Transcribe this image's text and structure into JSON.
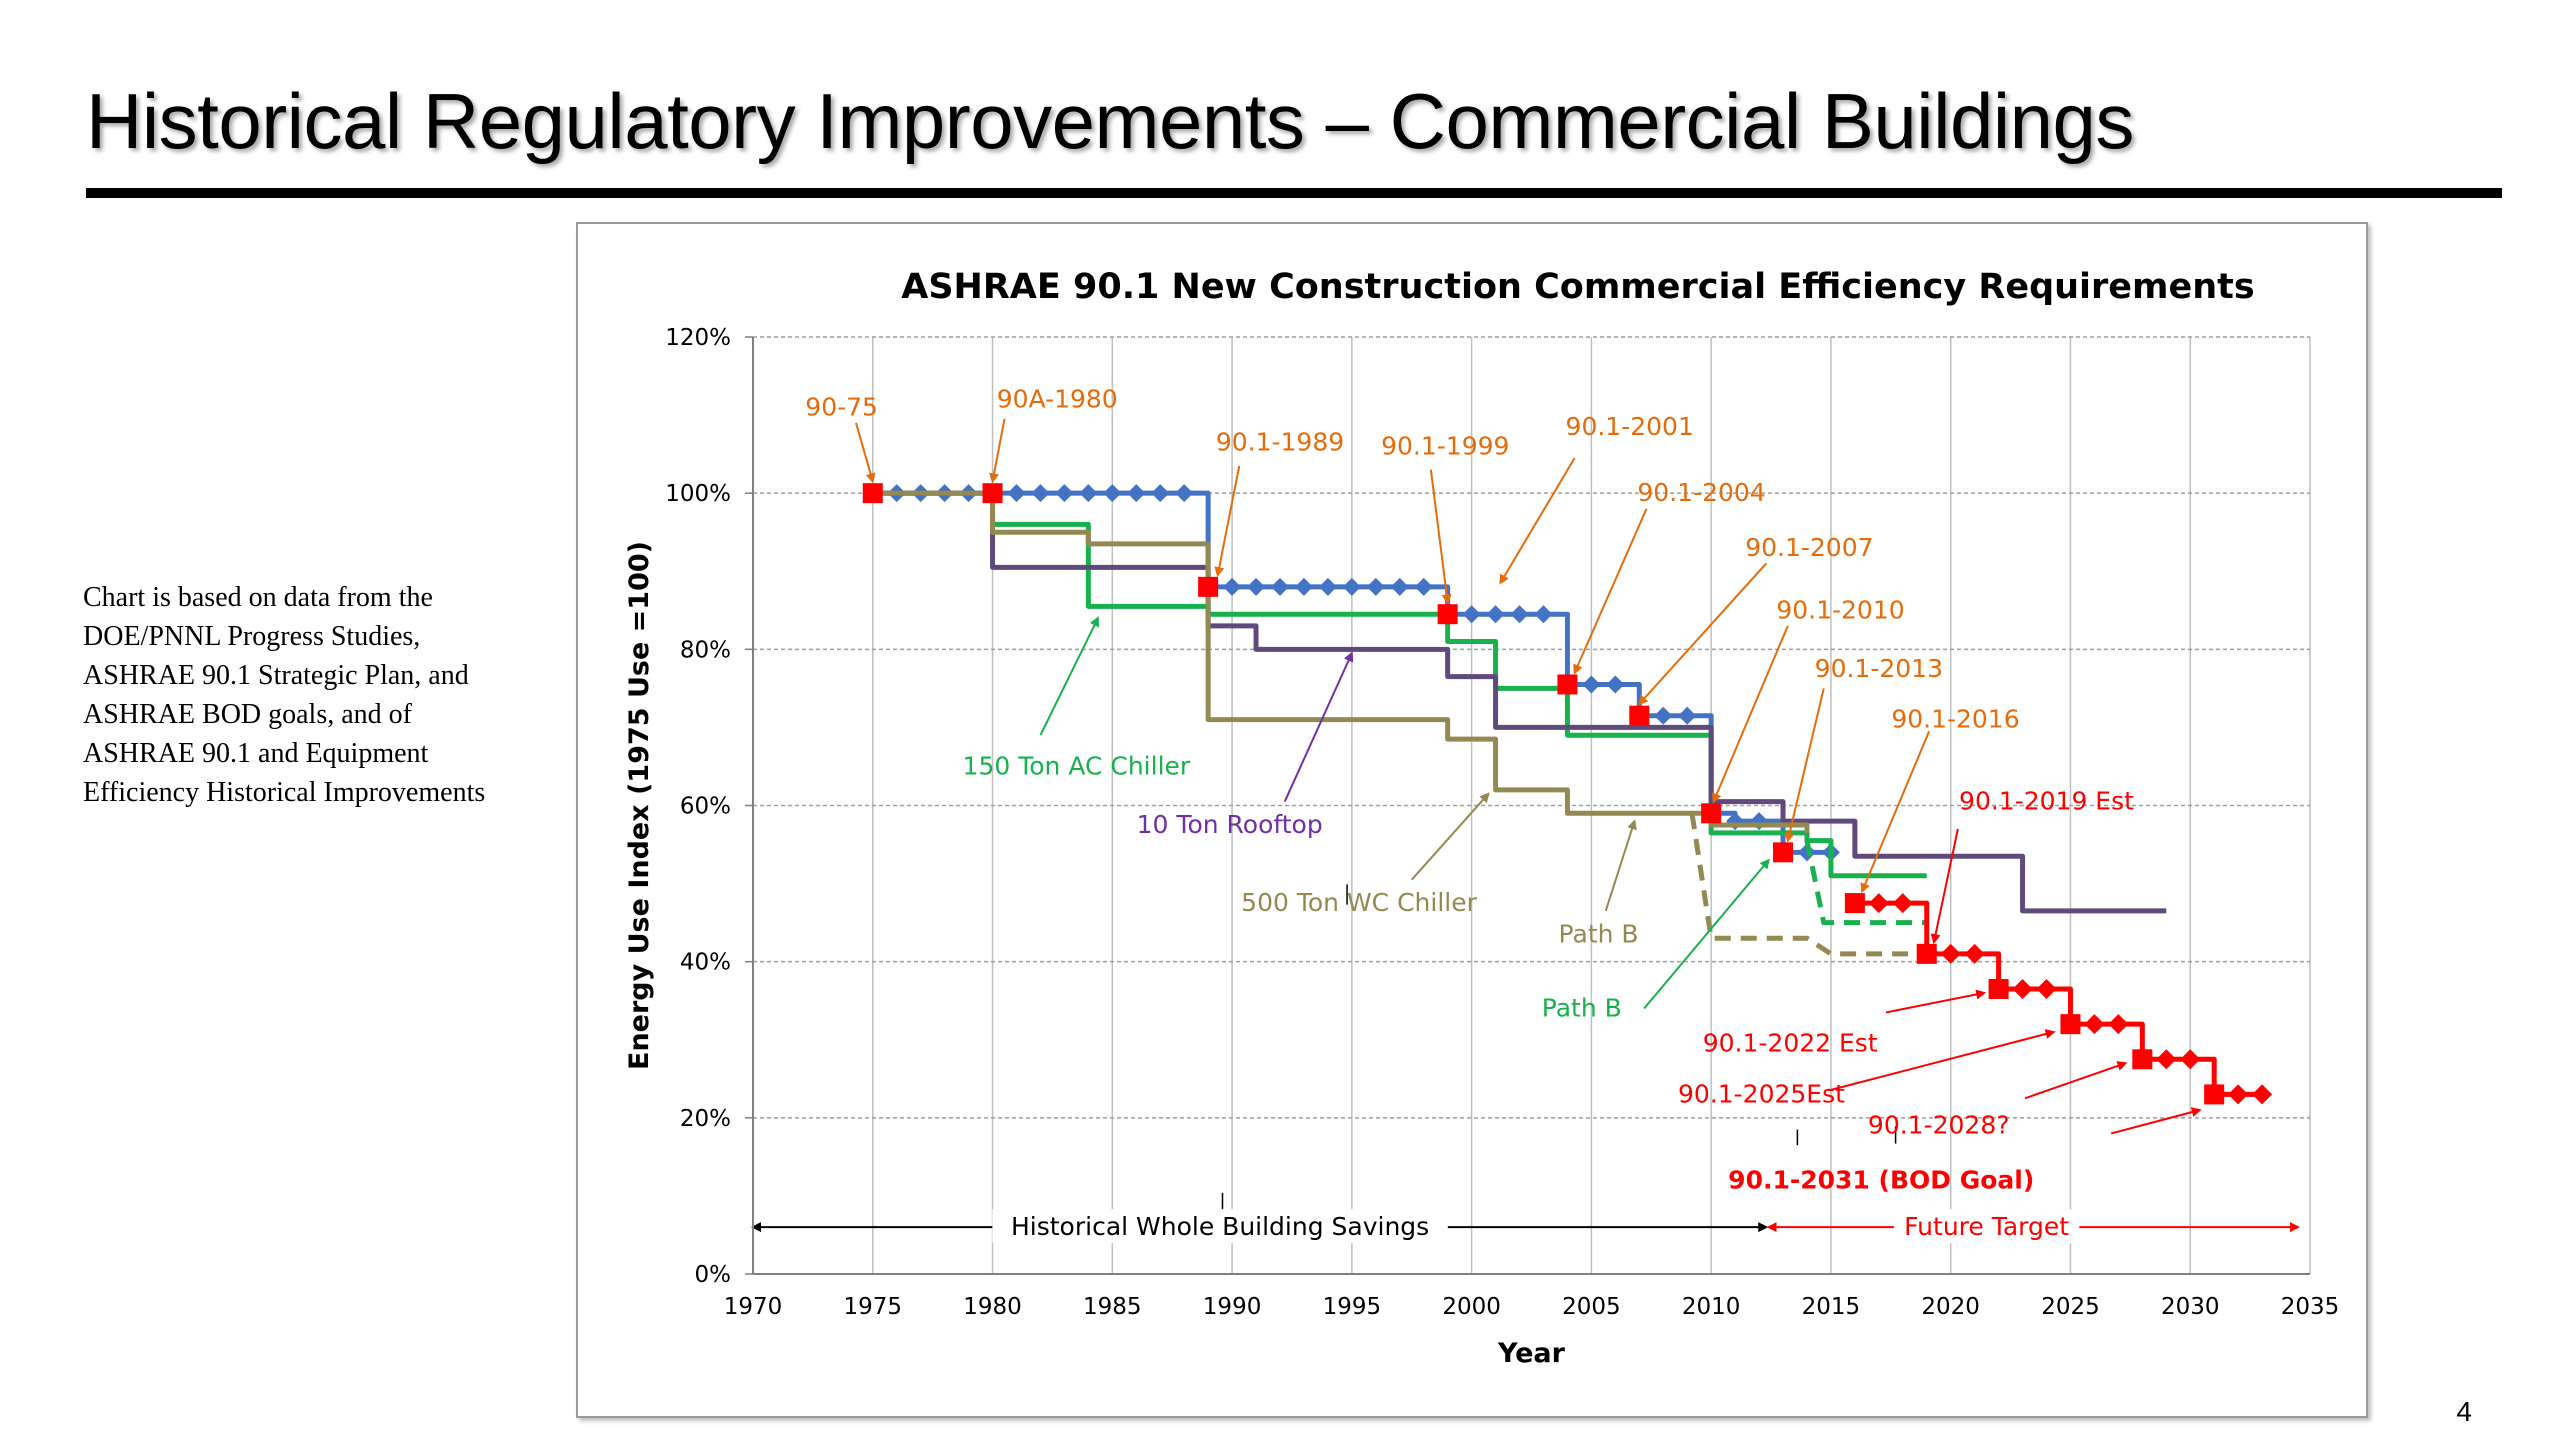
{
  "slide": {
    "title": "Historical Regulatory Improvements – Commercial Buildings",
    "note": "Chart is based on data from the DOE/PNNL Progress Studies, ASHRAE 90.1 Strategic Plan, and ASHRAE BOD goals, and of ASHRAE 90.1 and Equipment Efficiency Historical Improvements",
    "page_number": "4"
  },
  "chart_data": {
    "type": "line",
    "title": "ASHRAE 90.1 New Construction Commercial Efficiency Requirements",
    "xlabel": "Year",
    "ylabel": "Energy Use Index (1975 Use =100)",
    "xlim": [
      1970,
      2035
    ],
    "ylim": [
      0,
      120
    ],
    "x_ticks": [
      "1970",
      "1975",
      "1980",
      "1985",
      "1990",
      "1995",
      "2000",
      "2005",
      "2010",
      "2015",
      "2020",
      "2025",
      "2030",
      "2035"
    ],
    "y_ticks": [
      "0%",
      "20%",
      "40%",
      "60%",
      "80%",
      "100%",
      "120%"
    ],
    "grid": true,
    "colors": {
      "ashrae": "#4472C4",
      "ac_chiller": "#19B04E",
      "rooftop": "#604A7B",
      "wc_chiller": "#938953",
      "future": "#FF0000",
      "standard_label": "#E46C0A",
      "arrow_black": "#000000"
    },
    "series": [
      {
        "key": "ashrae",
        "style": "step-markers",
        "points": [
          [
            1975,
            100
          ],
          [
            1976,
            100
          ],
          [
            1977,
            100
          ],
          [
            1978,
            100
          ],
          [
            1979,
            100
          ],
          [
            1980,
            100
          ],
          [
            1981,
            100
          ],
          [
            1982,
            100
          ],
          [
            1983,
            100
          ],
          [
            1984,
            100
          ],
          [
            1985,
            100
          ],
          [
            1986,
            100
          ],
          [
            1987,
            100
          ],
          [
            1988,
            100
          ],
          [
            1989,
            88
          ],
          [
            1990,
            88
          ],
          [
            1991,
            88
          ],
          [
            1992,
            88
          ],
          [
            1993,
            88
          ],
          [
            1994,
            88
          ],
          [
            1995,
            88
          ],
          [
            1996,
            88
          ],
          [
            1997,
            88
          ],
          [
            1998,
            88
          ],
          [
            1999,
            84.5
          ],
          [
            2000,
            84.5
          ],
          [
            2001,
            84.5
          ],
          [
            2002,
            84.5
          ],
          [
            2003,
            84.5
          ],
          [
            2004,
            75.5
          ],
          [
            2005,
            75.5
          ],
          [
            2006,
            75.5
          ],
          [
            2007,
            71.5
          ],
          [
            2008,
            71.5
          ],
          [
            2009,
            71.5
          ],
          [
            2010,
            59
          ],
          [
            2011,
            58
          ],
          [
            2012,
            58
          ],
          [
            2013,
            54
          ],
          [
            2014,
            54
          ],
          [
            2015,
            54
          ]
        ]
      },
      {
        "key": "ac_chiller",
        "style": "step",
        "points": [
          [
            1975,
            100
          ],
          [
            1979,
            100
          ],
          [
            1980,
            96
          ],
          [
            1983,
            96
          ],
          [
            1984,
            85.5
          ],
          [
            1988,
            85.5
          ],
          [
            1989,
            84.5
          ],
          [
            1998,
            84.5
          ],
          [
            1999,
            81
          ],
          [
            2000,
            81
          ],
          [
            2001,
            75
          ],
          [
            2003,
            75
          ],
          [
            2004,
            69
          ],
          [
            2009,
            69
          ],
          [
            2010,
            56.5
          ],
          [
            2013,
            56.5
          ],
          [
            2014,
            55.5
          ],
          [
            2015,
            51
          ],
          [
            2019,
            51
          ]
        ]
      },
      {
        "key": "rooftop",
        "style": "step",
        "points": [
          [
            1975,
            100
          ],
          [
            1979,
            100
          ],
          [
            1980,
            90.5
          ],
          [
            1988,
            90.5
          ],
          [
            1989,
            83
          ],
          [
            1990,
            83
          ],
          [
            1991,
            80
          ],
          [
            1998,
            80
          ],
          [
            1999,
            76.5
          ],
          [
            2000,
            76.5
          ],
          [
            2001,
            70
          ],
          [
            2009,
            70
          ],
          [
            2010,
            60.5
          ],
          [
            2012,
            60.5
          ],
          [
            2013,
            58
          ],
          [
            2015,
            58
          ],
          [
            2016,
            53.5
          ],
          [
            2022,
            53.5
          ],
          [
            2023,
            46.5
          ],
          [
            2029,
            46.5
          ]
        ]
      },
      {
        "key": "wc_chiller",
        "style": "step",
        "points": [
          [
            1975,
            100
          ],
          [
            1979,
            100
          ],
          [
            1980,
            95
          ],
          [
            1983,
            95
          ],
          [
            1984,
            93.5
          ],
          [
            1988,
            93.5
          ],
          [
            1989,
            71
          ],
          [
            1998,
            71
          ],
          [
            1999,
            68.5
          ],
          [
            2000,
            68.5
          ],
          [
            2001,
            62
          ],
          [
            2003,
            62
          ],
          [
            2004,
            59
          ],
          [
            2009,
            59
          ],
          [
            2010,
            57.5
          ],
          [
            2013,
            57.5
          ],
          [
            2014,
            56.5
          ]
        ]
      },
      {
        "key": "ac_chiller",
        "style": "dashed",
        "points": [
          [
            2014,
            55.5
          ],
          [
            2014.7,
            45
          ],
          [
            2019,
            45
          ]
        ]
      },
      {
        "key": "wc_chiller",
        "style": "dashed",
        "points": [
          [
            2009.2,
            59
          ],
          [
            2010,
            43
          ],
          [
            2014,
            43
          ],
          [
            2015,
            41
          ],
          [
            2019,
            41
          ]
        ]
      },
      {
        "key": "future",
        "style": "step-markers",
        "points": [
          [
            2016,
            47.5
          ],
          [
            2017,
            47.5
          ],
          [
            2018,
            47.5
          ],
          [
            2019,
            41
          ],
          [
            2020,
            41
          ],
          [
            2021,
            41
          ],
          [
            2022,
            36.5
          ],
          [
            2023,
            36.5
          ],
          [
            2024,
            36.5
          ],
          [
            2025,
            32
          ],
          [
            2026,
            32
          ],
          [
            2027,
            32
          ],
          [
            2028,
            27.5
          ],
          [
            2029,
            27.5
          ],
          [
            2030,
            27.5
          ],
          [
            2031,
            23
          ],
          [
            2032,
            23
          ],
          [
            2033,
            23
          ]
        ]
      }
    ],
    "standard_years": [
      {
        "x": 1975,
        "y": 100,
        "color": "red"
      },
      {
        "x": 1980,
        "y": 100,
        "color": "red"
      },
      {
        "x": 1989,
        "y": 88,
        "color": "red"
      },
      {
        "x": 1999,
        "y": 84.5,
        "color": "red"
      },
      {
        "x": 2004,
        "y": 75.5,
        "color": "red"
      },
      {
        "x": 2007,
        "y": 71.5,
        "color": "red"
      },
      {
        "x": 2010,
        "y": 59,
        "color": "red"
      },
      {
        "x": 2013,
        "y": 54,
        "color": "red"
      },
      {
        "x": 2016,
        "y": 47.5,
        "color": "red"
      },
      {
        "x": 2019,
        "y": 41,
        "color": "red"
      },
      {
        "x": 2022,
        "y": 36.5,
        "color": "red"
      },
      {
        "x": 2025,
        "y": 32,
        "color": "red"
      },
      {
        "x": 2028,
        "y": 27.5,
        "color": "red"
      },
      {
        "x": 2031,
        "y": 23,
        "color": "red"
      }
    ],
    "annotations": [
      {
        "text": "90-75",
        "color": "orange",
        "bold": false,
        "at": [
          1973.7,
          111
        ],
        "arrow_from": [
          1974.3,
          109
        ],
        "arrow_to": [
          1975,
          101.5
        ]
      },
      {
        "text": "90A-1980",
        "color": "orange",
        "bold": false,
        "at": [
          1982.7,
          112
        ],
        "arrow_from": [
          1980.5,
          109.5
        ],
        "arrow_to": [
          1980,
          101.5
        ]
      },
      {
        "text": "90.1-1989",
        "color": "orange",
        "bold": false,
        "at": [
          1992,
          106.5
        ],
        "arrow_from": [
          1990.3,
          103.5
        ],
        "arrow_to": [
          1989.4,
          89.5
        ]
      },
      {
        "text": "90.1-1999",
        "color": "orange",
        "bold": false,
        "at": [
          1998.9,
          106
        ],
        "arrow_from": [
          1998.3,
          103
        ],
        "arrow_to": [
          1999,
          86
        ]
      },
      {
        "text": "90.1-2001",
        "color": "orange",
        "bold": false,
        "at": [
          2006.6,
          108.5
        ],
        "arrow_from": [
          2004.3,
          104.5
        ],
        "arrow_to": [
          2001.2,
          88.5
        ]
      },
      {
        "text": "90.1-2004",
        "color": "orange",
        "bold": false,
        "at": [
          2009.6,
          100
        ],
        "arrow_from": [
          2007.3,
          98
        ],
        "arrow_to": [
          2004.3,
          77
        ]
      },
      {
        "text": "90.1-2007",
        "color": "orange",
        "bold": false,
        "at": [
          2014.1,
          93
        ],
        "arrow_from": [
          2012.3,
          91
        ],
        "arrow_to": [
          2007,
          73
        ]
      },
      {
        "text": "90.1-2010",
        "color": "orange",
        "bold": false,
        "at": [
          2015.4,
          85
        ],
        "arrow_from": [
          2013.2,
          83
        ],
        "arrow_to": [
          2010.1,
          60.5
        ]
      },
      {
        "text": "90.1-2013",
        "color": "orange",
        "bold": false,
        "at": [
          2017,
          77.5
        ],
        "arrow_from": [
          2014.7,
          75
        ],
        "arrow_to": [
          2013.2,
          55.5
        ]
      },
      {
        "text": "90.1-2016",
        "color": "orange",
        "bold": false,
        "at": [
          2020.2,
          71
        ],
        "arrow_from": [
          2019.1,
          69.5
        ],
        "arrow_to": [
          2016.3,
          49
        ]
      },
      {
        "text": "90.1-2019 Est",
        "color": "red",
        "bold": false,
        "at": [
          2024,
          60.5
        ],
        "arrow_from": [
          2020.3,
          57
        ],
        "arrow_to": [
          2019.3,
          42.5
        ]
      },
      {
        "text": "90.1-2022 Est",
        "color": "red",
        "bold": false,
        "at": [
          2013.3,
          29.5
        ],
        "arrow_from": [
          2017.3,
          33.5
        ],
        "arrow_to": [
          2021.4,
          36
        ]
      },
      {
        "text": "90.1-2025Est",
        "color": "red",
        "bold": false,
        "at": [
          2012.1,
          23
        ],
        "arrow_from": [
          2014.9,
          23.5
        ],
        "arrow_to": [
          2024.3,
          31
        ]
      },
      {
        "text": "90.1-2028?",
        "color": "red",
        "bold": false,
        "at": [
          2019.5,
          19
        ],
        "arrow_from": [
          2023.1,
          22.5
        ],
        "arrow_to": [
          2027.3,
          27
        ]
      },
      {
        "text": "90.1-2031 (BOD Goal)",
        "color": "red",
        "bold": true,
        "at": [
          2017.1,
          12
        ],
        "arrow_from": [
          2026.7,
          18
        ],
        "arrow_to": [
          2030.4,
          21
        ]
      },
      {
        "text": "150 Ton AC Chiller",
        "color": "green",
        "bold": false,
        "at": [
          1983.5,
          65
        ],
        "arrow_from": [
          1982,
          69
        ],
        "arrow_to": [
          1984.4,
          84
        ]
      },
      {
        "text": "10 Ton Rooftop",
        "color": "purple",
        "bold": false,
        "at": [
          1989.9,
          57.5
        ],
        "arrow_from": [
          1992.2,
          60.5
        ],
        "arrow_to": [
          1995,
          79.5
        ]
      },
      {
        "text": "500 Ton WC Chiller",
        "color": "olive",
        "bold": false,
        "at": [
          1995.3,
          47.5
        ],
        "arrow_from": [
          1997.5,
          50.5
        ],
        "arrow_to": [
          2000.7,
          61.5
        ]
      },
      {
        "text": "Path B",
        "color": "olive",
        "bold": false,
        "at": [
          2005.3,
          43.5
        ],
        "arrow_from": [
          2005.6,
          46.5
        ],
        "arrow_to": [
          2006.8,
          58
        ]
      },
      {
        "text": "Path B",
        "color": "green",
        "bold": false,
        "at": [
          2004.6,
          34
        ],
        "arrow_from": [
          2007.2,
          34
        ],
        "arrow_to": [
          2012.4,
          53
        ]
      }
    ],
    "range_arrows": [
      {
        "text": "Historical Whole Building Savings",
        "color": "black",
        "from": 1970,
        "to": 2012.3,
        "y": 6,
        "label_x": 1989.5
      },
      {
        "text": "Future Target",
        "color": "red",
        "from": 2012.4,
        "to": 2034.5,
        "y": 6,
        "label_x": 2021.5
      }
    ],
    "tick_marks": [
      {
        "x": 1989.6,
        "y1": 7.6,
        "y2": 10.4
      },
      {
        "x": 1994.8,
        "y1": 47.3,
        "y2": 49.9
      },
      {
        "x": 2013.6,
        "y1": 16.5,
        "y2": 18.5
      },
      {
        "x": 2017.7,
        "y1": 16.7,
        "y2": 18.9
      }
    ]
  }
}
